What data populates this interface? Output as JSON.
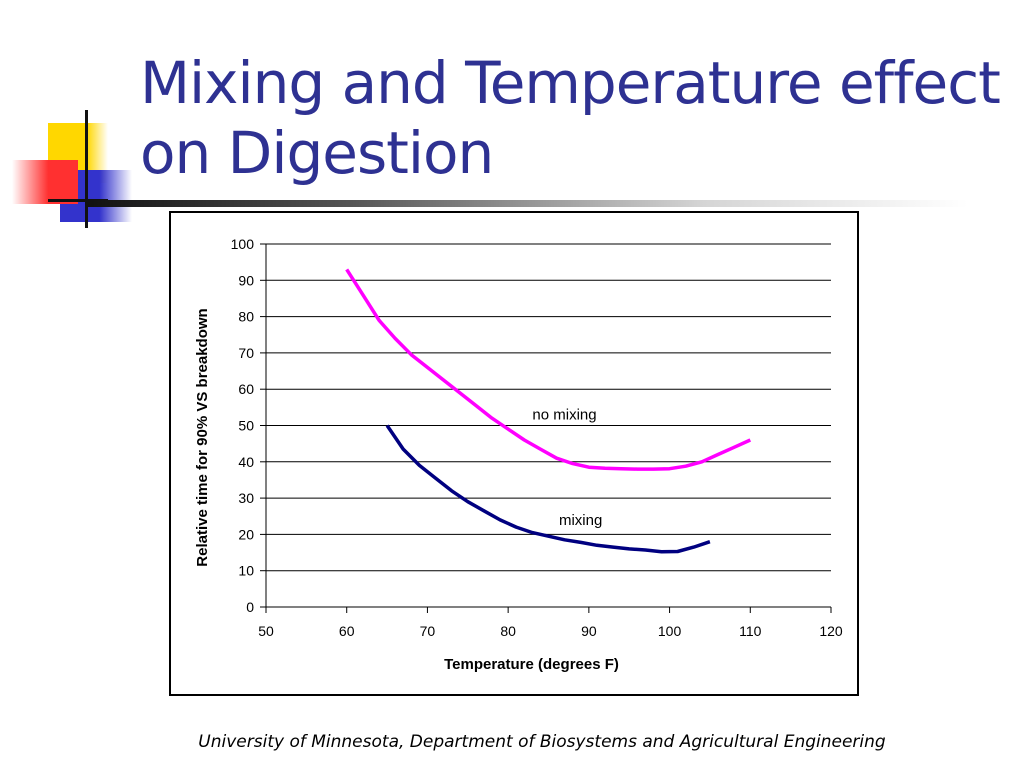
{
  "slide": {
    "title": "Mixing and Temperature effect on Digestion",
    "footer": "University of Minnesota, Department of Biosystems and Agricultural Engineering",
    "title_color": "#2e3192"
  },
  "chart_data": {
    "type": "line",
    "xlabel": "Temperature (degrees F)",
    "ylabel": "Relative time for 90% VS breakdown",
    "xlim": [
      50,
      120
    ],
    "ylim": [
      0,
      100
    ],
    "xticks": [
      50,
      60,
      70,
      80,
      90,
      100,
      110,
      120
    ],
    "yticks": [
      0,
      10,
      20,
      30,
      40,
      50,
      60,
      70,
      80,
      90,
      100
    ],
    "grid": "horizontal",
    "series": [
      {
        "name": "no mixing",
        "color": "#ff00ff",
        "x": [
          60,
          62,
          64,
          66,
          68,
          70,
          72,
          74,
          76,
          78,
          80,
          82,
          84,
          86,
          88,
          90,
          92,
          94,
          96,
          98,
          100,
          102,
          104,
          106,
          108,
          110
        ],
        "y": [
          93,
          86,
          79,
          74,
          69.5,
          66,
          62.5,
          59,
          55.5,
          52,
          49,
          46,
          43.5,
          41,
          39.5,
          38.5,
          38.2,
          38.1,
          38,
          38,
          38.1,
          38.8,
          40,
          42,
          44,
          46
        ]
      },
      {
        "name": "mixing",
        "color": "#000080",
        "x": [
          65,
          67,
          69,
          71,
          73,
          75,
          77,
          79,
          81,
          83,
          85,
          87,
          89,
          91,
          93,
          95,
          97,
          99,
          101,
          103,
          105
        ],
        "y": [
          50,
          43.5,
          39,
          35.5,
          32,
          29,
          26.5,
          24,
          22,
          20.5,
          19.5,
          18.5,
          17.8,
          17,
          16.5,
          16,
          15.7,
          15.2,
          15.3,
          16.5,
          18
        ]
      }
    ]
  }
}
